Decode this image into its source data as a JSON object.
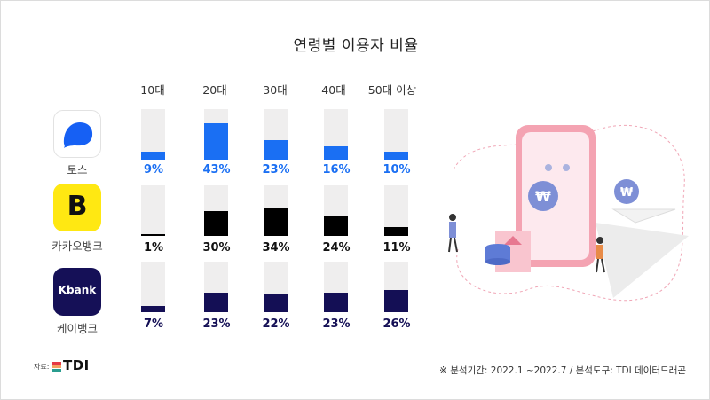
{
  "title": "연령별 이용자 비율",
  "age_groups": [
    "10대",
    "20대",
    "30대",
    "40대",
    "50대 이상"
  ],
  "apps": [
    {
      "name": "토스",
      "color": "#1a6ff3",
      "values": [
        "9%",
        "43%",
        "23%",
        "16%",
        "10%"
      ]
    },
    {
      "name": "카카오뱅크",
      "color": "#000000",
      "values": [
        "1%",
        "30%",
        "34%",
        "24%",
        "11%"
      ]
    },
    {
      "name": "케이뱅크",
      "color": "#140f55",
      "values": [
        "7%",
        "23%",
        "22%",
        "23%",
        "26%"
      ]
    }
  ],
  "kbank_logo_text": "Kbank",
  "kakao_logo_letter": "B",
  "source_label": "자료:",
  "source_logo_text": "TDI",
  "footnote": "※ 분석기간: 2022.1 ~2022.7  / 분석도구: TDI 데이터드래곤",
  "chart_data": {
    "type": "bar",
    "title": "연령별 이용자 비율",
    "categories": [
      "10대",
      "20대",
      "30대",
      "40대",
      "50대 이상"
    ],
    "series": [
      {
        "name": "토스",
        "values": [
          9,
          43,
          23,
          16,
          10
        ]
      },
      {
        "name": "카카오뱅크",
        "values": [
          1,
          30,
          34,
          24,
          11
        ]
      },
      {
        "name": "케이뱅크",
        "values": [
          7,
          23,
          22,
          23,
          26
        ]
      }
    ],
    "ylim": [
      0,
      100
    ],
    "unit": "%"
  }
}
